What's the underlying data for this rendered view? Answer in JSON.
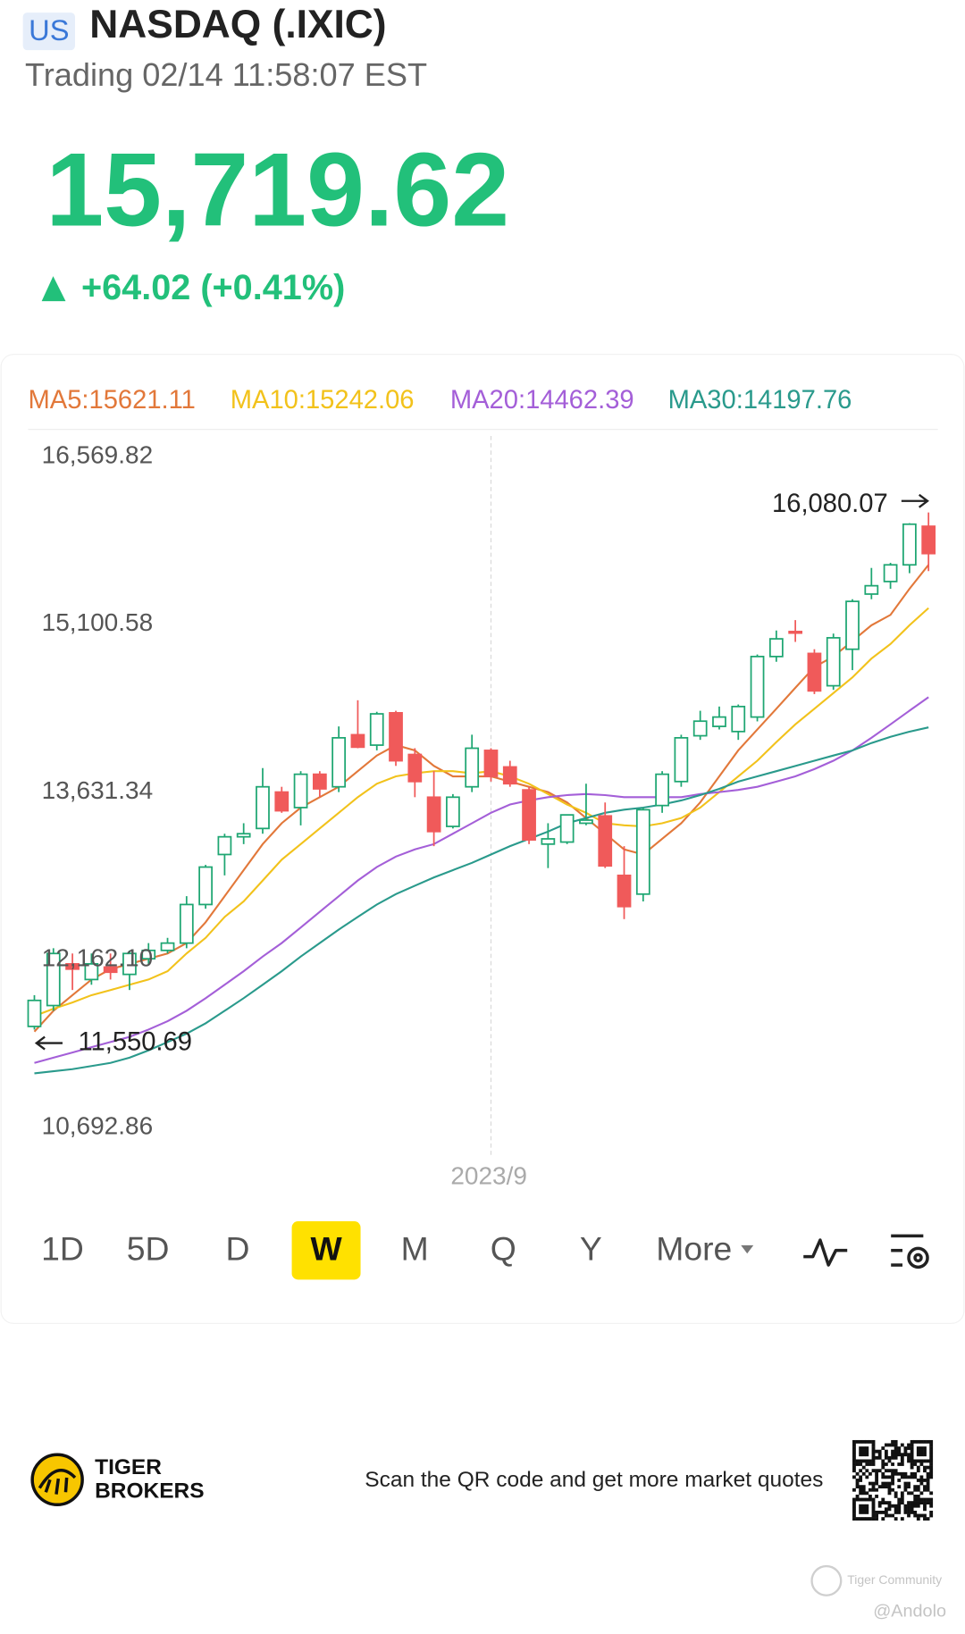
{
  "header": {
    "market": "US",
    "name": "NASDAQ (.IXIC)",
    "status": "Trading 02/14 11:58:07 EST",
    "price": "15,719.62",
    "change": "+64.02 (+0.41%)"
  },
  "chart_data": {
    "type": "candlestick",
    "categories": [
      null,
      null,
      null,
      null,
      null,
      null,
      null,
      null,
      null,
      null,
      null,
      null,
      null,
      null,
      null,
      null,
      null,
      null,
      null,
      null,
      null,
      null,
      null,
      null,
      "2023/9",
      null,
      null,
      null,
      null,
      null,
      null,
      null,
      null,
      null,
      null,
      null,
      null,
      null,
      null,
      null,
      null,
      null,
      null,
      null,
      null,
      null,
      null,
      null
    ],
    "open": [
      11578,
      11761,
      12126,
      11989,
      12098,
      12034,
      12171,
      12244,
      12308,
      12646,
      13084,
      13239,
      13312,
      13631,
      13495,
      13787,
      13677,
      14133,
      14042,
      14325,
      13960,
      13586,
      13330,
      13677,
      13996,
      13851,
      13650,
      13175,
      13193,
      13358,
      13422,
      12901,
      12737,
      13513,
      13723,
      14124,
      14206,
      14161,
      14288,
      14818,
      15037,
      14845,
      14562,
      14882,
      15365,
      15475,
      15621,
      15959
    ],
    "high": [
      11852,
      12263,
      12217,
      12217,
      12217,
      12244,
      12308,
      12354,
      12719,
      12993,
      13266,
      13358,
      13841,
      13677,
      13814,
      13814,
      14206,
      14435,
      14334,
      14343,
      14015,
      13814,
      13613,
      14133,
      14015,
      13905,
      13677,
      13358,
      13431,
      13704,
      13540,
      13157,
      13495,
      13814,
      14133,
      14343,
      14380,
      14398,
      14836,
      15046,
      15137,
      14882,
      15019,
      15320,
      15594,
      15639,
      15986,
      16080.07
    ],
    "low": [
      11550.69,
      11715,
      11897,
      11943,
      11989,
      11897,
      12126,
      12217,
      12263,
      12609,
      12901,
      13175,
      13266,
      13449,
      13339,
      13586,
      13631,
      14015,
      13996,
      13860,
      13586,
      13157,
      13312,
      13631,
      13723,
      13677,
      13175,
      12965,
      13175,
      13340,
      12965,
      12518,
      12673,
      13449,
      13677,
      14088,
      14179,
      14088,
      14250,
      14772,
      14946,
      14489,
      14526,
      14699,
      15320,
      15411,
      15548,
      15566
    ],
    "close": [
      11806,
      12217,
      12080,
      12126,
      12053,
      12217,
      12244,
      12308,
      12646,
      12974,
      13239,
      13266,
      13677,
      13467,
      13787,
      13659,
      14106,
      14024,
      14316,
      13905,
      13723,
      13285,
      13586,
      14015,
      13768,
      13704,
      13212,
      13221,
      13431,
      13385,
      12984,
      12628,
      13476,
      13787,
      14106,
      14252,
      14288,
      14380,
      14818,
      14973,
      15028,
      14517,
      14982,
      15301,
      15438,
      15621,
      15977,
      15719.62
    ],
    "up_color": "#1ea672",
    "down_color": "#f05a5a",
    "series": [
      {
        "name": "MA5:15621.11",
        "color": "#e2783a",
        "values": [
          11532,
          11715,
          11852,
          11989,
          12080,
          12126,
          12171,
          12217,
          12308,
          12491,
          12719,
          12947,
          13175,
          13358,
          13495,
          13586,
          13677,
          13814,
          13951,
          14042,
          13996,
          13860,
          13768,
          13768,
          13768,
          13723,
          13677,
          13631,
          13540,
          13403,
          13266,
          13129,
          13084,
          13221,
          13358,
          13540,
          13768,
          13996,
          14179,
          14361,
          14544,
          14727,
          14818,
          14955,
          15092,
          15183,
          15411,
          15621.11
        ]
      },
      {
        "name": "MA10:15242.06",
        "color": "#f2c21b",
        "values": [
          11669,
          11733,
          11788,
          11852,
          11897,
          11943,
          11989,
          12062,
          12217,
          12354,
          12537,
          12673,
          12856,
          13038,
          13175,
          13312,
          13449,
          13586,
          13704,
          13768,
          13796,
          13814,
          13814,
          13796,
          13814,
          13768,
          13704,
          13613,
          13522,
          13449,
          13358,
          13339,
          13330,
          13358,
          13403,
          13495,
          13631,
          13768,
          13905,
          14069,
          14224,
          14361,
          14498,
          14635,
          14800,
          14927,
          15092,
          15242.06
        ]
      },
      {
        "name": "MA20:14462.39",
        "color": "#a45fd8",
        "values": [
          11259,
          11304,
          11350,
          11396,
          11441,
          11487,
          11551,
          11624,
          11715,
          11825,
          11943,
          12062,
          12190,
          12308,
          12445,
          12582,
          12719,
          12856,
          12974,
          13066,
          13129,
          13175,
          13266,
          13358,
          13449,
          13522,
          13558,
          13586,
          13604,
          13613,
          13604,
          13586,
          13586,
          13586,
          13586,
          13613,
          13631,
          13650,
          13677,
          13723,
          13768,
          13832,
          13905,
          13996,
          14106,
          14224,
          14343,
          14462.39
        ]
      },
      {
        "name": "MA30:14197.76",
        "color": "#2a9a8c",
        "values": [
          11167,
          11186,
          11204,
          11231,
          11259,
          11304,
          11368,
          11441,
          11514,
          11605,
          11715,
          11825,
          11943,
          12062,
          12190,
          12308,
          12427,
          12537,
          12646,
          12737,
          12810,
          12883,
          12947,
          13011,
          13084,
          13157,
          13221,
          13285,
          13358,
          13403,
          13449,
          13476,
          13495,
          13522,
          13558,
          13604,
          13659,
          13723,
          13768,
          13814,
          13860,
          13905,
          13951,
          13996,
          14060,
          14115,
          14160,
          14197.76
        ]
      }
    ],
    "ylim": [
      10450,
      16750
    ],
    "yticks": [
      {
        "value": 16569.82,
        "label": "16,569.82"
      },
      {
        "value": 15100.58,
        "label": "15,100.58"
      },
      {
        "value": 13631.34,
        "label": "13,631.34"
      },
      {
        "value": 12162.1,
        "label": "12,162.10"
      },
      {
        "value": 10692.86,
        "label": "10,692.86"
      }
    ],
    "max_label": {
      "value": 16080.07,
      "label": "16,080.07"
    },
    "min_label": {
      "value": 11550.69,
      "label": "11,550.69"
    },
    "grid": false
  },
  "tabs": [
    "1D",
    "5D",
    "D",
    "W",
    "M",
    "Q",
    "Y",
    "More"
  ],
  "selected_tab": 3,
  "footer": {
    "brand_line1": "TIGER",
    "brand_line2": "BROKERS",
    "qr_text": "Scan the QR code and get more market quotes",
    "watermark": "Tiger Community",
    "author": "@Andolo"
  }
}
